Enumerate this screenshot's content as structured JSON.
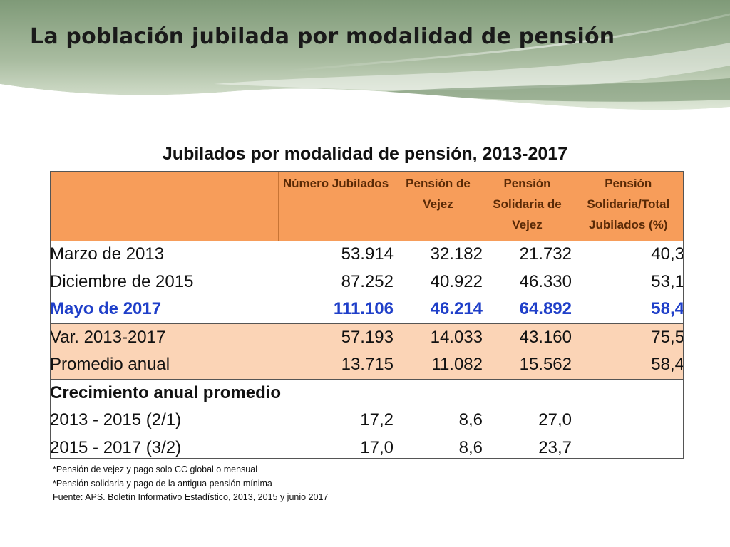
{
  "slide_title": "La población jubilada por modalidad de pensión",
  "table_title": "Jubilados por modalidad de pensión, 2013-2017",
  "columns": {
    "numero": "Número Jubilados",
    "vejez": "Pensión de Vejez",
    "solidaria": "Pensión Solidaria de Vejez",
    "porcentaje": "Pensión Solidaria/Total Jubilados (%)"
  },
  "rows": [
    {
      "label": "Marzo de 2013",
      "numero": "53.914",
      "vejez": "32.182",
      "solidaria": "21.732",
      "porcentaje": "40,3"
    },
    {
      "label": "Diciembre de 2015",
      "numero": "87.252",
      "vejez": "40.922",
      "solidaria": "46.330",
      "porcentaje": "53,1"
    },
    {
      "label": "Mayo de 2017",
      "numero": "111.106",
      "vejez": "46.214",
      "solidaria": "64.892",
      "porcentaje": "58,4"
    },
    {
      "label": "Var. 2013-2017",
      "numero": "57.193",
      "vejez": "14.033",
      "solidaria": "43.160",
      "porcentaje": "75,5"
    },
    {
      "label": "Promedio anual",
      "numero": "13.715",
      "vejez": "11.082",
      "solidaria": "15.562",
      "porcentaje": "58,4"
    }
  ],
  "growth": {
    "heading": "Crecimiento anual promedio",
    "rows": [
      {
        "label": "2013 - 2015 (2/1)",
        "numero": "17,2",
        "vejez": "8,6",
        "solidaria": "27,0"
      },
      {
        "label": "2015 - 2017 (3/2)",
        "numero": "17,0",
        "vejez": "8,6",
        "solidaria": "23,7"
      }
    ]
  },
  "notes": [
    "*Pensión de vejez y pago solo CC global o mensual",
    "*Pensión solidaria y pago de la antigua pensión mínima",
    "Fuente: APS. Boletín Informativo Estadístico, 2013, 2015  y  junio 2017"
  ],
  "colors": {
    "header_fill": "#f79d5a",
    "shade_fill": "#fbd4b6",
    "highlight_text": "#1f3fc9",
    "banner_dark": "#7f9a78",
    "banner_light": "#c9d8c0"
  }
}
